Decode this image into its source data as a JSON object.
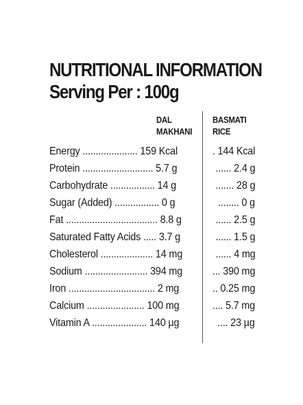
{
  "title": "NUTRITIONAL INFORMATION",
  "subtitle": "Serving Per : 100g",
  "columns": {
    "a": {
      "line1": "DAL",
      "line2": "MAKHANI"
    },
    "b": {
      "line1": "BASMATI",
      "line2": "RICE"
    }
  },
  "rows": [
    {
      "a": "Energy ..................... 159 Kcal",
      "b": ". 144 Kcal"
    },
    {
      "a": "Protein ........................... 5.7 g",
      "b": "...... 2.4 g"
    },
    {
      "a": "Carbohydrate ................. 14 g",
      "b": "....... 28 g"
    },
    {
      "a": "Sugar (Added) ................. 0 g",
      "b": "........ 0 g"
    },
    {
      "a": "Fat ................................... 8.8 g",
      "b": "...... 2.5 g"
    },
    {
      "a": "Saturated Fatty Acids ..... 3.7 g",
      "b": "...... 1.5 g"
    },
    {
      "a": "Cholesterol .................... 14 mg",
      "b": "...... 4 mg"
    },
    {
      "a": "Sodium ........................ 394 mg",
      "b": "... 390 mg"
    },
    {
      "a": "Iron ................................. 2 mg",
      "b": ".. 0.25 mg"
    },
    {
      "a": "Calcium ...................... 100 mg",
      "b": ".... 5.7 mg"
    },
    {
      "a": "Vitamin A ..................... 140 µg",
      "b": ".... 23 µg"
    }
  ]
}
